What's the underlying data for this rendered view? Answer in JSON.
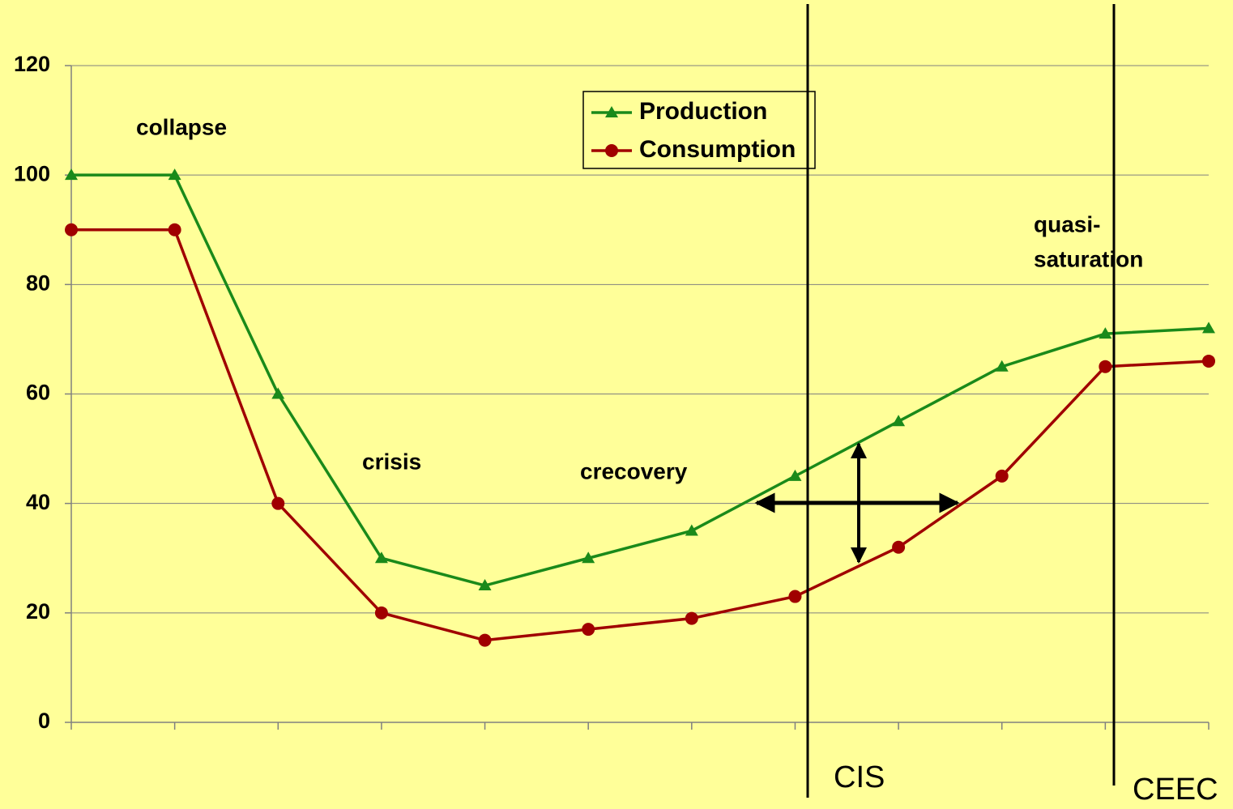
{
  "chart_data": {
    "type": "line",
    "categories": [
      null,
      null,
      null,
      null,
      null,
      null,
      null,
      null,
      null,
      null,
      null,
      null
    ],
    "series": [
      {
        "name": "Production",
        "color": "#1a8a1a",
        "marker": "triangle",
        "values": [
          100,
          100,
          60,
          30,
          25,
          30,
          35,
          45,
          55,
          65,
          71,
          72
        ]
      },
      {
        "name": "Consumption",
        "color": "#a00000",
        "marker": "circle",
        "values": [
          90,
          90,
          40,
          20,
          15,
          17,
          19,
          23,
          32,
          45,
          65,
          66
        ]
      }
    ],
    "ylim": [
      0,
      120
    ],
    "yticks": [
      0,
      20,
      40,
      60,
      80,
      100,
      120
    ],
    "grid": true,
    "annotations": [
      "collapse",
      "crisis",
      "crecovery",
      "quasi-",
      "saturation",
      "CIS",
      "CEEC"
    ]
  }
}
